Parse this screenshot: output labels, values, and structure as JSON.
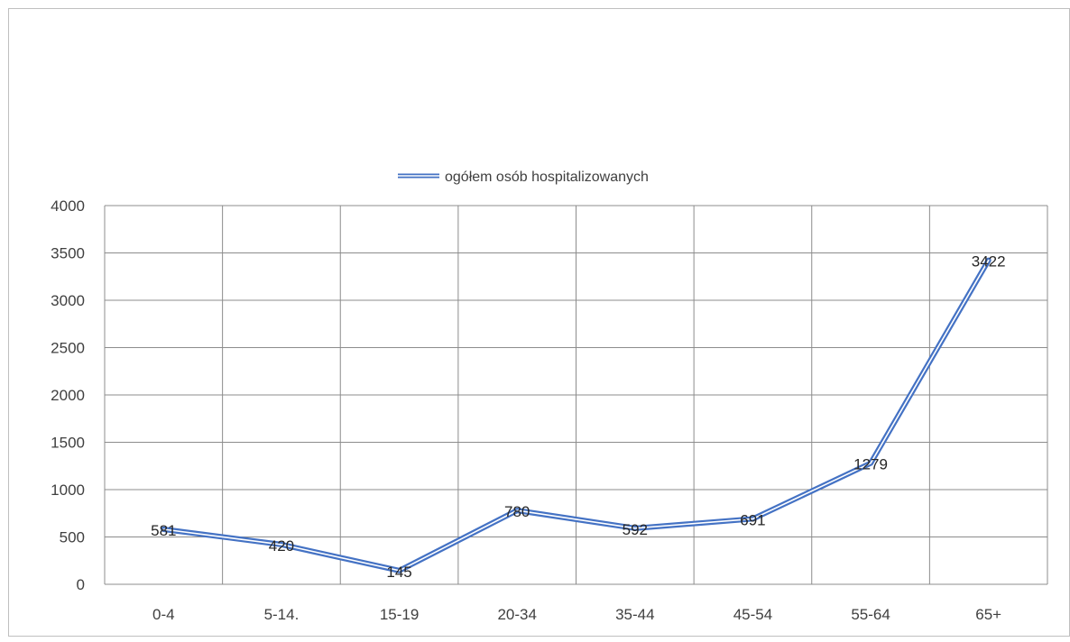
{
  "chart_data": {
    "type": "line",
    "categories": [
      "0-4",
      "5-14.",
      "15-19",
      "20-34",
      "35-44",
      "45-54",
      "55-64",
      "65+"
    ],
    "series": [
      {
        "name": "ogółem osób  hospitalizowanych",
        "values": [
          581,
          420,
          145,
          780,
          592,
          691,
          1279,
          3422
        ],
        "color": "#4472C4"
      }
    ],
    "ylim": [
      0,
      4000
    ],
    "yticks": [
      0,
      500,
      1000,
      1500,
      2000,
      2500,
      3000,
      3500,
      4000
    ],
    "grid": true,
    "legend_position": "top",
    "line_style": "double",
    "data_labels": true
  }
}
